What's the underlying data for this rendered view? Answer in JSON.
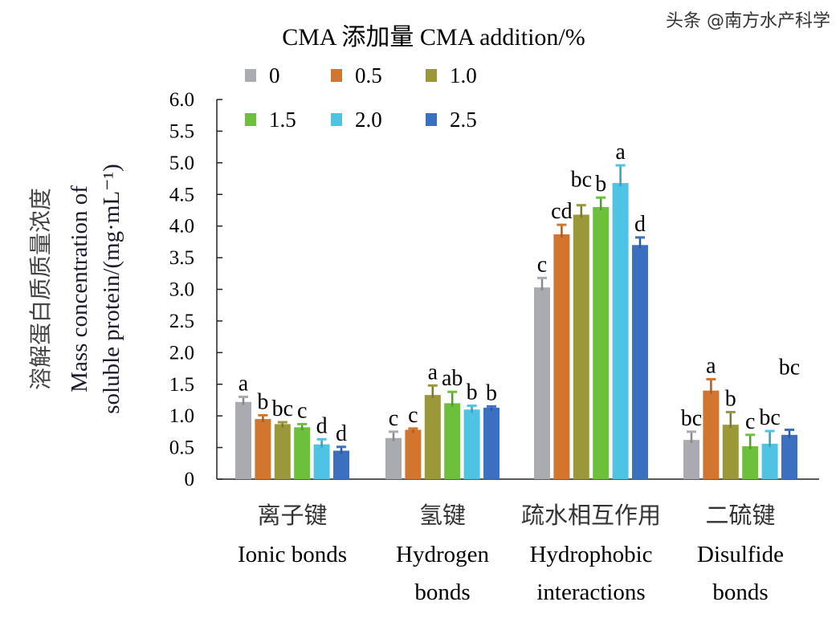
{
  "chart_data": {
    "type": "bar",
    "title": "CMA 添加量 CMA addition/%",
    "ylabel_lines": [
      "溶解蛋白质质量浓度",
      "Mass concentration of",
      "soluble protein/(mg·mL⁻¹)"
    ],
    "ylim": [
      0,
      6.0
    ],
    "yticks": [
      "0",
      "0.5",
      "1.0",
      "1.5",
      "2.0",
      "2.5",
      "3.0",
      "3.5",
      "4.0",
      "4.5",
      "5.0",
      "5.5",
      "6.0"
    ],
    "legend_placement": "top",
    "categories": [
      {
        "zh": "离子键",
        "en": [
          "Ionic bonds"
        ]
      },
      {
        "zh": "氢键",
        "en": [
          "Hydrogen",
          "bonds"
        ]
      },
      {
        "zh": "疏水相互作用",
        "en": [
          "Hydrophobic",
          "interactions"
        ]
      },
      {
        "zh": "二硫键",
        "en": [
          "Disulfide",
          "bonds"
        ]
      }
    ],
    "series": [
      {
        "name": "0",
        "color": "#a9abb0",
        "values": [
          1.22,
          0.65,
          3.03,
          0.62
        ],
        "errors": [
          0.08,
          0.1,
          0.15,
          0.13
        ],
        "labels": [
          "a",
          "c",
          "c",
          "bc"
        ]
      },
      {
        "name": "0.5",
        "color": "#d2752e",
        "values": [
          0.95,
          0.78,
          3.87,
          1.4
        ],
        "errors": [
          0.06,
          0.02,
          0.15,
          0.18
        ],
        "labels": [
          "b",
          "c",
          "cd",
          "a"
        ]
      },
      {
        "name": "1.0",
        "color": "#9a9838",
        "values": [
          0.87,
          1.33,
          4.18,
          0.86
        ],
        "errors": [
          0.03,
          0.15,
          0.15,
          0.2
        ],
        "labels": [
          "bc",
          "a",
          "bc",
          "b"
        ]
      },
      {
        "name": "1.5",
        "color": "#6cc03c",
        "values": [
          0.82,
          1.2,
          4.3,
          0.52
        ],
        "errors": [
          0.05,
          0.18,
          0.15,
          0.18
        ],
        "labels": [
          "c",
          "ab",
          "b",
          "c"
        ]
      },
      {
        "name": "2.0",
        "color": "#4fc3e4",
        "values": [
          0.55,
          1.1,
          4.68,
          0.56
        ],
        "errors": [
          0.08,
          0.06,
          0.28,
          0.2
        ],
        "labels": [
          "d",
          "b",
          "a",
          "bc"
        ]
      },
      {
        "name": "2.5",
        "color": "#3b6fbf",
        "values": [
          0.45,
          1.13,
          3.7,
          0.7
        ],
        "errors": [
          0.06,
          0.02,
          0.12,
          0.08
        ],
        "labels": [
          "d",
          "b",
          "d",
          "bc"
        ]
      }
    ]
  },
  "watermark": "头条 @南方水产科学"
}
